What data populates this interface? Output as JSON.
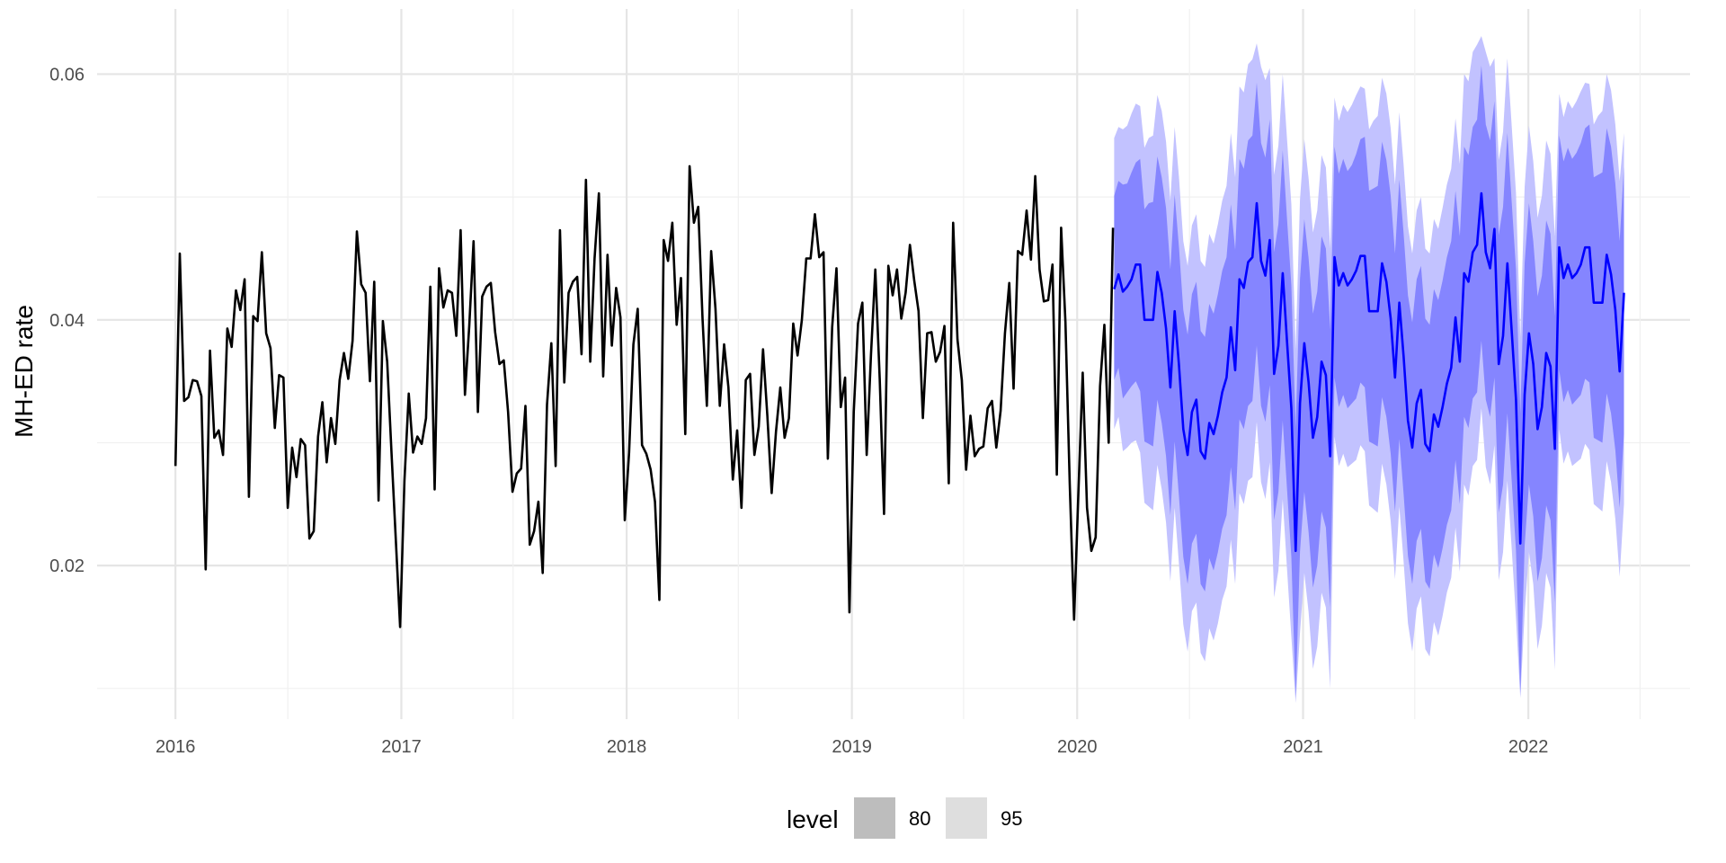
{
  "chart_data": {
    "type": "line",
    "title": "",
    "xlabel": "",
    "ylabel": "MH-ED rate",
    "x_ticks": [
      "2016",
      "2017",
      "2018",
      "2019",
      "2020",
      "2021",
      "2022"
    ],
    "y_ticks": [
      "0.02",
      "0.04",
      "0.06"
    ],
    "xlim": [
      "2015-08-27",
      "2022-09-20"
    ],
    "ylim": [
      0.0075,
      0.0653
    ],
    "grid": true,
    "legend": {
      "title": "level",
      "position": "bottom",
      "entries": [
        {
          "label": "80",
          "swatch_color": "#bdbdbd"
        },
        {
          "label": "95",
          "swatch_color": "#dedede"
        }
      ]
    },
    "colors": {
      "observed": "#000000",
      "forecast_mean": "#0000ff",
      "interval_80": "#8585ff",
      "interval_95": "#c2c2ff",
      "grid_major": "#e5e5e5",
      "grid_minor": "#f0f0f0"
    },
    "observed": {
      "start": "2016-01-01",
      "step_days": 7,
      "values": [
        0.0281,
        0.0454,
        0.0334,
        0.0337,
        0.0351,
        0.035,
        0.0338,
        0.0197,
        0.0375,
        0.0304,
        0.031,
        0.029,
        0.0393,
        0.0378,
        0.0424,
        0.0408,
        0.0433,
        0.0256,
        0.0403,
        0.0399,
        0.0455,
        0.0389,
        0.0377,
        0.0312,
        0.0355,
        0.0353,
        0.0247,
        0.0296,
        0.0272,
        0.0303,
        0.0298,
        0.0222,
        0.0228,
        0.0305,
        0.0333,
        0.0284,
        0.032,
        0.0299,
        0.0351,
        0.0373,
        0.0352,
        0.0383,
        0.0472,
        0.0429,
        0.0422,
        0.035,
        0.0431,
        0.0253,
        0.0399,
        0.0366,
        0.0292,
        0.0221,
        0.015,
        0.0269,
        0.034,
        0.0292,
        0.0305,
        0.0299,
        0.032,
        0.0427,
        0.0262,
        0.0442,
        0.041,
        0.0424,
        0.0422,
        0.0387,
        0.0473,
        0.0339,
        0.0395,
        0.0464,
        0.0325,
        0.0419,
        0.0427,
        0.043,
        0.039,
        0.0364,
        0.0367,
        0.0325,
        0.026,
        0.0275,
        0.0279,
        0.033,
        0.0217,
        0.0228,
        0.0252,
        0.0194,
        0.0331,
        0.0381,
        0.0281,
        0.0473,
        0.0349,
        0.0422,
        0.0431,
        0.0435,
        0.0372,
        0.0514,
        0.0366,
        0.045,
        0.0503,
        0.0354,
        0.0453,
        0.0379,
        0.0426,
        0.0402,
        0.0237,
        0.0292,
        0.038,
        0.0409,
        0.0298,
        0.0291,
        0.0278,
        0.0252,
        0.0172,
        0.0465,
        0.0448,
        0.0479,
        0.0396,
        0.0434,
        0.0307,
        0.0525,
        0.0479,
        0.0492,
        0.0401,
        0.033,
        0.0456,
        0.0409,
        0.033,
        0.038,
        0.0345,
        0.027,
        0.031,
        0.0247,
        0.0351,
        0.0356,
        0.029,
        0.0313,
        0.0376,
        0.0322,
        0.0259,
        0.0309,
        0.0345,
        0.0304,
        0.032,
        0.0397,
        0.0371,
        0.04,
        0.045,
        0.045,
        0.0486,
        0.0451,
        0.0455,
        0.0287,
        0.0394,
        0.0442,
        0.0329,
        0.0353,
        0.0162,
        0.0325,
        0.0397,
        0.0414,
        0.029,
        0.0372,
        0.0441,
        0.0352,
        0.0242,
        0.0444,
        0.042,
        0.0441,
        0.0401,
        0.0422,
        0.0461,
        0.0432,
        0.0407,
        0.032,
        0.0389,
        0.039,
        0.0366,
        0.0374,
        0.0395,
        0.0267,
        0.0479,
        0.0384,
        0.0351,
        0.0278,
        0.0322,
        0.0289,
        0.0295,
        0.0297,
        0.0328,
        0.0334,
        0.0296,
        0.0326,
        0.0389,
        0.043,
        0.0344,
        0.0456,
        0.0453,
        0.0489,
        0.0449,
        0.0517,
        0.0441,
        0.0415,
        0.0416,
        0.0445,
        0.0274,
        0.0475,
        0.0398,
        0.0266,
        0.0156,
        0.0259,
        0.0357,
        0.0247,
        0.0212,
        0.0223,
        0.0346,
        0.0396,
        0.03,
        0.0475
      ]
    },
    "forecast": {
      "start": "2020-03-01",
      "step_days": 7,
      "mean": [
        0.0425,
        0.0437,
        0.0423,
        0.0427,
        0.0433,
        0.0445,
        0.0445,
        0.04,
        0.04,
        0.04,
        0.0439,
        0.0422,
        0.0393,
        0.0345,
        0.0407,
        0.0363,
        0.0311,
        0.029,
        0.0325,
        0.0335,
        0.0293,
        0.0287,
        0.0316,
        0.0307,
        0.0322,
        0.0341,
        0.0353,
        0.0394,
        0.0359,
        0.0433,
        0.0426,
        0.0447,
        0.0451,
        0.0495,
        0.0448,
        0.0436,
        0.0465,
        0.0356,
        0.0379,
        0.0438,
        0.0382,
        0.0328,
        0.0212,
        0.0332,
        0.0381,
        0.0349,
        0.0304,
        0.0321,
        0.0366,
        0.0355,
        0.0289,
        0.0451,
        0.0428,
        0.0438,
        0.0428,
        0.0433,
        0.044,
        0.0452,
        0.0452,
        0.0407,
        0.0407,
        0.0407,
        0.0446,
        0.0431,
        0.0401,
        0.0353,
        0.0414,
        0.037,
        0.0318,
        0.0296,
        0.0332,
        0.0343,
        0.0299,
        0.0293,
        0.0323,
        0.0313,
        0.0329,
        0.0348,
        0.0361,
        0.0402,
        0.0366,
        0.0438,
        0.0431,
        0.0455,
        0.0461,
        0.0503,
        0.0455,
        0.0442,
        0.0474,
        0.0364,
        0.0387,
        0.0446,
        0.0391,
        0.0335,
        0.0218,
        0.0339,
        0.0389,
        0.0364,
        0.0311,
        0.0329,
        0.0373,
        0.0362,
        0.0295,
        0.0459,
        0.0434,
        0.0445,
        0.0434,
        0.0438,
        0.0445,
        0.0459,
        0.0459,
        0.0414,
        0.0414,
        0.0414,
        0.0453,
        0.0437,
        0.0408,
        0.0358,
        0.0422
      ],
      "lo80": [
        0.0351,
        0.0361,
        0.0336,
        0.0341,
        0.0346,
        0.035,
        0.0342,
        0.0301,
        0.0299,
        0.0297,
        0.0335,
        0.0316,
        0.0289,
        0.0241,
        0.0301,
        0.0256,
        0.0207,
        0.0185,
        0.0218,
        0.0226,
        0.0185,
        0.0179,
        0.0206,
        0.0196,
        0.0211,
        0.023,
        0.0241,
        0.028,
        0.0245,
        0.0319,
        0.0311,
        0.033,
        0.0334,
        0.0379,
        0.033,
        0.0317,
        0.0347,
        0.0237,
        0.026,
        0.0318,
        0.0262,
        0.0207,
        0.0092,
        0.0211,
        0.026,
        0.0227,
        0.0182,
        0.02,
        0.0244,
        0.0231,
        0.0166,
        0.0353,
        0.0329,
        0.0339,
        0.0328,
        0.0332,
        0.0336,
        0.0349,
        0.0345,
        0.0301,
        0.0299,
        0.0297,
        0.0337,
        0.0321,
        0.0291,
        0.0244,
        0.0303,
        0.0258,
        0.0208,
        0.0185,
        0.022,
        0.023,
        0.0187,
        0.0181,
        0.0209,
        0.0198,
        0.0214,
        0.0233,
        0.0245,
        0.0286,
        0.025,
        0.0321,
        0.0312,
        0.0336,
        0.0341,
        0.0383,
        0.0335,
        0.0321,
        0.0353,
        0.0243,
        0.0266,
        0.0324,
        0.0269,
        0.0212,
        0.0094,
        0.0216,
        0.0266,
        0.024,
        0.0187,
        0.0206,
        0.0249,
        0.0237,
        0.017,
        0.0359,
        0.0333,
        0.0343,
        0.0331,
        0.0335,
        0.0339,
        0.0352,
        0.0349,
        0.0304,
        0.0302,
        0.03,
        0.034,
        0.0324,
        0.0294,
        0.0247,
        0.0307
      ],
      "hi80": [
        0.0501,
        0.0513,
        0.051,
        0.0511,
        0.052,
        0.0528,
        0.0531,
        0.049,
        0.0495,
        0.0496,
        0.0533,
        0.0516,
        0.0491,
        0.0441,
        0.0502,
        0.0459,
        0.0408,
        0.0388,
        0.0421,
        0.0431,
        0.0391,
        0.0386,
        0.0413,
        0.0405,
        0.0421,
        0.044,
        0.0451,
        0.0494,
        0.0457,
        0.0531,
        0.0523,
        0.0546,
        0.055,
        0.0593,
        0.0544,
        0.0532,
        0.0563,
        0.0455,
        0.0478,
        0.0538,
        0.0482,
        0.0428,
        0.0312,
        0.0433,
        0.0482,
        0.045,
        0.0405,
        0.0423,
        0.0468,
        0.0458,
        0.0392,
        0.0541,
        0.0519,
        0.0531,
        0.0521,
        0.0526,
        0.0535,
        0.0547,
        0.0549,
        0.0505,
        0.0507,
        0.0509,
        0.0545,
        0.053,
        0.0501,
        0.0454,
        0.0514,
        0.047,
        0.042,
        0.0398,
        0.0433,
        0.0444,
        0.0401,
        0.0396,
        0.0425,
        0.0416,
        0.0432,
        0.0451,
        0.0464,
        0.0505,
        0.0468,
        0.0541,
        0.0534,
        0.0557,
        0.0563,
        0.0607,
        0.0559,
        0.0546,
        0.0578,
        0.0469,
        0.0492,
        0.0552,
        0.0496,
        0.0441,
        0.0324,
        0.0446,
        0.0495,
        0.0464,
        0.0419,
        0.0436,
        0.0481,
        0.047,
        0.0403,
        0.055,
        0.0529,
        0.054,
        0.0531,
        0.0536,
        0.0544,
        0.0556,
        0.0559,
        0.0516,
        0.0518,
        0.052,
        0.0556,
        0.0541,
        0.0511,
        0.0464,
        0.0525
      ],
      "lo95": [
        0.0311,
        0.0321,
        0.0293,
        0.0296,
        0.03,
        0.0302,
        0.0292,
        0.0251,
        0.0248,
        0.0245,
        0.0282,
        0.0262,
        0.0235,
        0.0187,
        0.0247,
        0.0201,
        0.0152,
        0.013,
        0.0163,
        0.017,
        0.0129,
        0.0122,
        0.0149,
        0.0139,
        0.0153,
        0.0172,
        0.0183,
        0.0221,
        0.0185,
        0.0259,
        0.025,
        0.0269,
        0.0272,
        0.0317,
        0.0268,
        0.0254,
        0.0284,
        0.0174,
        0.0196,
        0.0254,
        0.0197,
        0.0142,
        0.0088,
        0.0145,
        0.0194,
        0.0162,
        0.0116,
        0.0134,
        0.0178,
        0.0166,
        0.01,
        0.0305,
        0.0281,
        0.0291,
        0.028,
        0.0283,
        0.0286,
        0.0298,
        0.0293,
        0.0249,
        0.0246,
        0.0243,
        0.0283,
        0.0266,
        0.0236,
        0.0189,
        0.0248,
        0.0203,
        0.0153,
        0.013,
        0.0165,
        0.0175,
        0.0132,
        0.0126,
        0.0154,
        0.0143,
        0.0159,
        0.0178,
        0.019,
        0.0231,
        0.0195,
        0.0266,
        0.0257,
        0.0281,
        0.0286,
        0.0328,
        0.028,
        0.0266,
        0.0298,
        0.0188,
        0.0211,
        0.0269,
        0.0214,
        0.0157,
        0.0092,
        0.0161,
        0.0211,
        0.0185,
        0.0132,
        0.0151,
        0.0194,
        0.0182,
        0.0115,
        0.0311,
        0.0283,
        0.0293,
        0.0281,
        0.0284,
        0.0287,
        0.0299,
        0.0294,
        0.025,
        0.0247,
        0.0244,
        0.0285,
        0.0268,
        0.0238,
        0.0191,
        0.025
      ],
      "hi95": [
        0.0548,
        0.0557,
        0.0555,
        0.0558,
        0.0568,
        0.0576,
        0.0574,
        0.054,
        0.0548,
        0.055,
        0.0583,
        0.057,
        0.0545,
        0.0497,
        0.0557,
        0.0516,
        0.0464,
        0.0444,
        0.0477,
        0.0486,
        0.0448,
        0.0443,
        0.047,
        0.0462,
        0.0478,
        0.0497,
        0.0509,
        0.0552,
        0.0516,
        0.059,
        0.0585,
        0.0608,
        0.0612,
        0.0625,
        0.0606,
        0.0595,
        0.0605,
        0.0518,
        0.0542,
        0.06,
        0.0547,
        0.0494,
        0.0376,
        0.0498,
        0.0547,
        0.0515,
        0.0471,
        0.0489,
        0.0534,
        0.0524,
        0.0458,
        0.0581,
        0.0562,
        0.0575,
        0.0569,
        0.0575,
        0.0583,
        0.059,
        0.0588,
        0.0555,
        0.0562,
        0.0566,
        0.0597,
        0.0584,
        0.0556,
        0.051,
        0.0569,
        0.0526,
        0.0476,
        0.0454,
        0.0489,
        0.05,
        0.0458,
        0.0454,
        0.0482,
        0.0474,
        0.0491,
        0.051,
        0.0523,
        0.0564,
        0.0527,
        0.06,
        0.0594,
        0.0618,
        0.0624,
        0.0631,
        0.0618,
        0.0606,
        0.0613,
        0.053,
        0.0553,
        0.0613,
        0.0558,
        0.0503,
        0.0386,
        0.0508,
        0.0558,
        0.0529,
        0.0483,
        0.0501,
        0.0546,
        0.0535,
        0.0468,
        0.0584,
        0.0565,
        0.0578,
        0.0572,
        0.0578,
        0.0586,
        0.0593,
        0.0592,
        0.0559,
        0.0566,
        0.057,
        0.06,
        0.0587,
        0.0559,
        0.0513,
        0.0552
      ]
    }
  }
}
